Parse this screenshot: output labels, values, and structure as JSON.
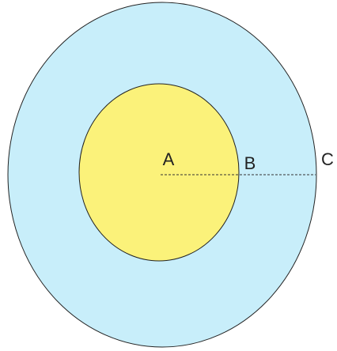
{
  "nodes": [
    {
      "label": "A"
    },
    {
      "label": "B"
    },
    {
      "label": "C"
    }
  ]
}
